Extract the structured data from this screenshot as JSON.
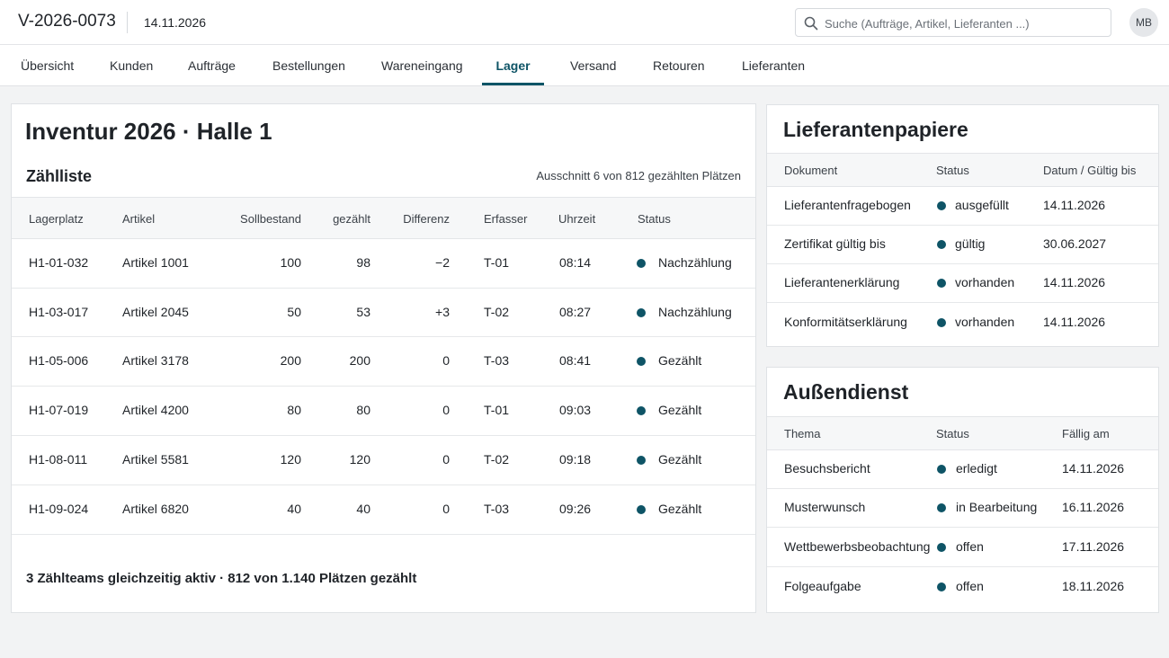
{
  "header": {
    "doc_id": "V-2026-0073",
    "date": "14.11.2026",
    "search_placeholder": "Suche (Aufträge, Artikel, Lieferanten ...)",
    "avatar_initials": "MB"
  },
  "nav": {
    "tabs": [
      {
        "label": "Übersicht"
      },
      {
        "label": "Kunden"
      },
      {
        "label": "Aufträge"
      },
      {
        "label": "Bestellungen"
      },
      {
        "label": "Wareneingang"
      },
      {
        "label": "Lager",
        "active": true
      },
      {
        "label": "Versand"
      },
      {
        "label": "Retouren"
      },
      {
        "label": "Lieferanten"
      }
    ]
  },
  "main": {
    "title": "Inventur 2026 · Halle 1",
    "subtitle": "Zählliste",
    "excerpt": "Ausschnitt 6 von 812 gezählten Plätzen",
    "columns": [
      "Lagerplatz",
      "Artikel",
      "Sollbestand",
      "gezählt",
      "Differenz",
      "Erfasser",
      "Uhrzeit",
      "Status"
    ],
    "rows": [
      {
        "lagerplatz": "H1-01-032",
        "artikel": "Artikel 1001",
        "soll": "100",
        "gezaehlt": "98",
        "differenz": "−2",
        "erfasser": "T-01",
        "uhrzeit": "08:14",
        "status": "Nachzählung"
      },
      {
        "lagerplatz": "H1-03-017",
        "artikel": "Artikel 2045",
        "soll": "50",
        "gezaehlt": "53",
        "differenz": "+3",
        "erfasser": "T-02",
        "uhrzeit": "08:27",
        "status": "Nachzählung"
      },
      {
        "lagerplatz": "H1-05-006",
        "artikel": "Artikel 3178",
        "soll": "200",
        "gezaehlt": "200",
        "differenz": "0",
        "erfasser": "T-03",
        "uhrzeit": "08:41",
        "status": "Gezählt"
      },
      {
        "lagerplatz": "H1-07-019",
        "artikel": "Artikel 4200",
        "soll": "80",
        "gezaehlt": "80",
        "differenz": "0",
        "erfasser": "T-01",
        "uhrzeit": "09:03",
        "status": "Gezählt"
      },
      {
        "lagerplatz": "H1-08-011",
        "artikel": "Artikel 5581",
        "soll": "120",
        "gezaehlt": "120",
        "differenz": "0",
        "erfasser": "T-02",
        "uhrzeit": "09:18",
        "status": "Gezählt"
      },
      {
        "lagerplatz": "H1-09-024",
        "artikel": "Artikel 6820",
        "soll": "40",
        "gezaehlt": "40",
        "differenz": "0",
        "erfasser": "T-03",
        "uhrzeit": "09:26",
        "status": "Gezählt"
      }
    ],
    "footer": "3 Zählteams gleichzeitig aktiv · 812 von 1.140 Plätzen gezählt"
  },
  "papers": {
    "title": "Lieferantenpapiere",
    "columns": [
      "Dokument",
      "Status",
      "Datum / Gültig bis"
    ],
    "rows": [
      {
        "dokument": "Lieferantenfragebogen",
        "status": "ausgefüllt",
        "datum": "14.11.2026"
      },
      {
        "dokument": "Zertifikat gültig bis",
        "status": "gültig",
        "datum": "30.06.2027"
      },
      {
        "dokument": "Lieferantenerklärung",
        "status": "vorhanden",
        "datum": "14.11.2026"
      },
      {
        "dokument": "Konformitätserklärung",
        "status": "vorhanden",
        "datum": "14.11.2026"
      }
    ]
  },
  "field": {
    "title": "Außendienst",
    "columns": [
      "Thema",
      "Status",
      "Fällig am"
    ],
    "rows": [
      {
        "thema": "Besuchsbericht",
        "status": "erledigt",
        "faellig": "14.11.2026"
      },
      {
        "thema": "Musterwunsch",
        "status": "in Bearbeitung",
        "faellig": "16.11.2026"
      },
      {
        "thema": "Wettbewerbsbeobachtung",
        "status": "offen",
        "faellig": "17.11.2026"
      },
      {
        "thema": "Folgeaufgabe",
        "status": "offen",
        "faellig": "18.11.2026"
      }
    ]
  },
  "colors": {
    "accent": "#0e5466",
    "status_dot": "#0e5466"
  }
}
